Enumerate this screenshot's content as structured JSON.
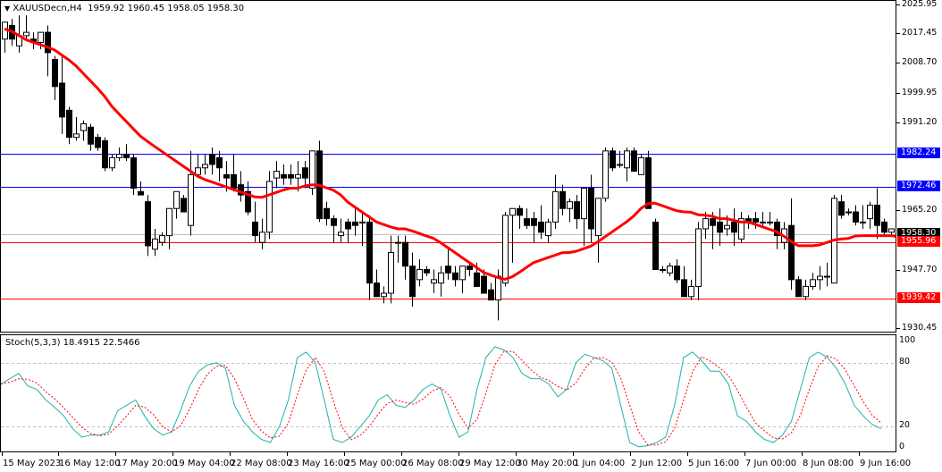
{
  "header": {
    "symbol": "XAUUSDecn,H4",
    "ohlc": "1959.92 1960.45 1958.05 1958.30",
    "title_full": "▼ XAUUSDecn,H4  1959.92 1960.45 1958.05 1958.30"
  },
  "oscillator": {
    "title": "Stoch(5,3,3) 18.4915 22.5466",
    "name": "Stoch(5,3,3)",
    "main_value": "18.4915",
    "signal_value": "22.5466",
    "levels": [
      "100",
      "80",
      "20",
      "0"
    ]
  },
  "price_axis": {
    "ticks": [
      "2025.95",
      "2017.45",
      "2008.70",
      "1999.95",
      "1991.20",
      "1965.20",
      "1947.70",
      "1930.45"
    ],
    "tags": [
      {
        "label": "1982.24",
        "color": "#0000ff",
        "type": "resistance"
      },
      {
        "label": "1972.46",
        "color": "#0000ff",
        "type": "resistance"
      },
      {
        "label": "1958.30",
        "color": "#000000",
        "type": "current-price"
      },
      {
        "label": "1955.96",
        "color": "#ff0000",
        "type": "support"
      },
      {
        "label": "1939.42",
        "color": "#ff0000",
        "type": "support"
      }
    ]
  },
  "time_axis": {
    "labels": [
      "15 May 2023",
      "16 May 12:00",
      "17 May 20:00",
      "19 May 04:00",
      "22 May 08:00",
      "23 May 16:00",
      "25 May 00:00",
      "26 May 08:00",
      "29 May 12:00",
      "30 May 20:00",
      "1 Jun 04:00",
      "2 Jun 12:00",
      "5 Jun 16:00",
      "7 Jun 00:00",
      "8 Jun 08:00",
      "9 Jun 16:00"
    ]
  },
  "colors": {
    "ma_line": "#ff0000",
    "resistance_line": "#0000ff",
    "support_line": "#ff0000",
    "current_price_line": "#c0c0c0",
    "stoch_main": "#20b2aa",
    "stoch_signal": "#ff0000",
    "bull_candle": "#ffffff",
    "bear_candle": "#000000"
  },
  "chart_data": [
    {
      "type": "candlestick",
      "title": "XAUUSDecn,H4",
      "xlabel": "",
      "ylabel": "Price",
      "ylim": [
        1930.45,
        2025.95
      ],
      "grid": false,
      "x_range": [
        "15 May 2023",
        "9 Jun 16:00"
      ],
      "last_ohlc": {
        "open": 1959.92,
        "high": 1960.45,
        "low": 1958.05,
        "close": 1958.3
      },
      "horizontal_lines": [
        {
          "value": 1982.24,
          "color": "#0000ff"
        },
        {
          "value": 1972.46,
          "color": "#0000ff"
        },
        {
          "value": 1958.3,
          "color": "#c0c0c0",
          "label": "current price"
        },
        {
          "value": 1955.96,
          "color": "#ff0000"
        },
        {
          "value": 1939.42,
          "color": "#ff0000"
        }
      ],
      "ohlc": [
        [
          2016,
          2019,
          2012,
          2021
        ],
        [
          2020,
          2022,
          2014,
          2016
        ],
        [
          2014,
          2023,
          2012,
          2017
        ],
        [
          2017,
          2023,
          2016,
          2018
        ],
        [
          2016,
          2018,
          2013,
          2015
        ],
        [
          2015,
          2016,
          2013,
          2018
        ],
        [
          2018,
          2020,
          2005,
          2012
        ],
        [
          2010,
          2011,
          1998,
          2002
        ],
        [
          2003,
          2011,
          1988,
          1993
        ],
        [
          1995,
          1996,
          1985,
          1987
        ],
        [
          1987,
          1993,
          1986,
          1988
        ],
        [
          1989,
          1992,
          1986,
          1991
        ],
        [
          1990,
          1991,
          1983,
          1985
        ],
        [
          1987,
          1988,
          1983,
          1984
        ],
        [
          1986,
          1987,
          1977,
          1978
        ],
        [
          1978,
          1982,
          1977,
          1981
        ],
        [
          1981,
          1984,
          1980,
          1982
        ],
        [
          1982,
          1985,
          1980,
          1981
        ],
        [
          1981,
          1982,
          1970,
          1972
        ],
        [
          1971,
          1974,
          1970,
          1970
        ],
        [
          1968,
          1970,
          1952,
          1955
        ],
        [
          1954,
          1960,
          1952,
          1957
        ],
        [
          1956,
          1959,
          1955,
          1958
        ],
        [
          1958,
          1966,
          1954,
          1966
        ],
        [
          1966,
          1971,
          1963,
          1971
        ],
        [
          1969,
          1970,
          1966,
          1965
        ],
        [
          1961,
          1983,
          1958,
          1976
        ],
        [
          1976,
          1982,
          1975,
          1978
        ],
        [
          1978,
          1982,
          1976,
          1979
        ],
        [
          1982,
          1984,
          1976,
          1979
        ],
        [
          1981,
          1983,
          1974,
          1978
        ],
        [
          1976,
          1980,
          1971,
          1975
        ],
        [
          1976,
          1982,
          1971,
          1972
        ],
        [
          1973,
          1977,
          1968,
          1970
        ],
        [
          1971,
          1974,
          1964,
          1965
        ],
        [
          1962,
          1968,
          1956,
          1958
        ],
        [
          1956,
          1963,
          1954,
          1959
        ],
        [
          1959,
          1977,
          1957,
          1974
        ],
        [
          1975,
          1980,
          1972,
          1977
        ],
        [
          1976,
          1979,
          1973,
          1975
        ],
        [
          1976,
          1979,
          1973,
          1975
        ],
        [
          1975,
          1980,
          1971,
          1976
        ],
        [
          1978,
          1980,
          1972,
          1975
        ],
        [
          1972,
          1983,
          1970,
          1983
        ],
        [
          1983,
          1986,
          1962,
          1963
        ],
        [
          1966,
          1968,
          1961,
          1963
        ],
        [
          1963,
          1964,
          1956,
          1961
        ],
        [
          1958,
          1963,
          1956,
          1959
        ],
        [
          1962,
          1963,
          1956,
          1960
        ],
        [
          1962,
          1966,
          1958,
          1961
        ],
        [
          1962,
          1965,
          1955,
          1962
        ],
        [
          1962,
          1964,
          1939,
          1944
        ],
        [
          1944,
          1948,
          1940,
          1940
        ],
        [
          1940,
          1943,
          1938,
          1941
        ],
        [
          1941,
          1958,
          1938,
          1953
        ],
        [
          1956,
          1958,
          1950,
          1956
        ],
        [
          1956,
          1958,
          1945,
          1949
        ],
        [
          1949,
          1953,
          1937,
          1940
        ],
        [
          1945,
          1951,
          1943,
          1948
        ],
        [
          1948,
          1949,
          1946,
          1947
        ],
        [
          1944,
          1948,
          1941,
          1945
        ],
        [
          1944,
          1949,
          1940,
          1947
        ],
        [
          1949,
          1954,
          1945,
          1947
        ],
        [
          1947,
          1949,
          1943,
          1945
        ],
        [
          1945,
          1949,
          1941,
          1949
        ],
        [
          1949,
          1950,
          1946,
          1948
        ],
        [
          1947,
          1950,
          1945,
          1943
        ],
        [
          1946,
          1948,
          1942,
          1941
        ],
        [
          1942,
          1944,
          1940,
          1939
        ],
        [
          1939,
          1948,
          1933,
          1946
        ],
        [
          1944,
          1965,
          1943,
          1964
        ],
        [
          1964,
          1966,
          1950,
          1966
        ],
        [
          1966,
          1967,
          1960,
          1964
        ],
        [
          1963,
          1966,
          1960,
          1961
        ],
        [
          1963,
          1965,
          1956,
          1961
        ],
        [
          1962,
          1967,
          1957,
          1959
        ],
        [
          1958,
          1963,
          1956,
          1962
        ],
        [
          1962,
          1976,
          1960,
          1971
        ],
        [
          1971,
          1973,
          1964,
          1966
        ],
        [
          1966,
          1969,
          1962,
          1968
        ],
        [
          1968,
          1970,
          1960,
          1963
        ],
        [
          1963,
          1972,
          1955,
          1972
        ],
        [
          1972,
          1976,
          1956,
          1960
        ],
        [
          1958,
          1969,
          1950,
          1969
        ],
        [
          1969,
          1984,
          1968,
          1983
        ],
        [
          1983,
          1984,
          1977,
          1978
        ],
        [
          1979,
          1983,
          1978,
          1979
        ],
        [
          1978,
          1984,
          1974,
          1983
        ],
        [
          1983,
          1984,
          1977,
          1977
        ],
        [
          1976,
          1982,
          1976,
          1981
        ],
        [
          1981,
          1983,
          1966,
          1966
        ],
        [
          1962,
          1963,
          1948,
          1948
        ],
        [
          1948,
          1949,
          1947,
          1948
        ],
        [
          1947,
          1950,
          1946,
          1949
        ],
        [
          1949,
          1951,
          1944,
          1945
        ],
        [
          1945,
          1949,
          1940,
          1940
        ],
        [
          1940,
          1945,
          1939,
          1943
        ],
        [
          1943,
          1962,
          1939,
          1960
        ],
        [
          1960,
          1965,
          1957,
          1963
        ],
        [
          1963,
          1965,
          1954,
          1961
        ],
        [
          1962,
          1966,
          1955,
          1959
        ],
        [
          1960,
          1964,
          1958,
          1961
        ],
        [
          1962,
          1966,
          1955,
          1959
        ],
        [
          1957,
          1965,
          1956,
          1963
        ],
        [
          1963,
          1964,
          1960,
          1962
        ],
        [
          1963,
          1965,
          1960,
          1962
        ],
        [
          1962,
          1965,
          1961,
          1962
        ],
        [
          1962,
          1965,
          1961,
          1962
        ],
        [
          1962,
          1963,
          1954,
          1958
        ],
        [
          1956,
          1962,
          1954,
          1960
        ],
        [
          1961,
          1969,
          1942,
          1945
        ],
        [
          1945,
          1946,
          1940,
          1940
        ],
        [
          1940,
          1945,
          1939,
          1943
        ],
        [
          1943,
          1947,
          1942,
          1945
        ],
        [
          1945,
          1949,
          1942,
          1946
        ],
        [
          1946,
          1950,
          1943,
          1946
        ],
        [
          1944,
          1970,
          1944,
          1969
        ],
        [
          1968,
          1970,
          1963,
          1964
        ],
        [
          1965,
          1966,
          1964,
          1965
        ],
        [
          1965,
          1967,
          1961,
          1962
        ],
        [
          1962,
          1967,
          1960,
          1962
        ],
        [
          1963,
          1968,
          1960,
          1967
        ],
        [
          1967,
          1972,
          1957,
          1961
        ],
        [
          1962,
          1963,
          1958,
          1959
        ],
        [
          1959,
          1960,
          1958,
          1960
        ],
        [
          1959,
          1960,
          1956,
          1958
        ],
        [
          1959.92,
          1960.45,
          1958.05,
          1958.3
        ]
      ],
      "series": [
        {
          "name": "Moving Average",
          "color": "#ff0000",
          "values": [
            2019,
            2018,
            2016,
            2015,
            2014,
            2013,
            2011,
            2009,
            2006,
            2003,
            2000,
            1996,
            1993,
            1990,
            1987,
            1985,
            1983,
            1981,
            1979,
            1977,
            1975,
            1974,
            1973,
            1972,
            1971,
            1970,
            1969,
            1970,
            1971,
            1972,
            1972,
            1973,
            1973,
            1972,
            1971,
            1968,
            1966,
            1964,
            1962,
            1961,
            1960,
            1960,
            1959,
            1958,
            1957,
            1955,
            1953,
            1951,
            1949,
            1947,
            1946,
            1945,
            1946,
            1948,
            1950,
            1951,
            1952,
            1953,
            1953,
            1954,
            1955,
            1957,
            1959,
            1961,
            1963,
            1966,
            1968,
            1967,
            1966,
            1965,
            1965,
            1964,
            1964,
            1963,
            1963,
            1962,
            1962,
            1961,
            1960,
            1959,
            1957,
            1955,
            1955,
            1955,
            1956,
            1957,
            1957,
            1958,
            1958,
            1958,
            1958,
            1958,
            1957
          ]
        }
      ]
    },
    {
      "type": "line",
      "title": "Stoch(5,3,3) 18.4915 22.5466",
      "ylim": [
        0,
        100
      ],
      "levels": [
        20,
        80
      ],
      "series": [
        {
          "name": "%K (main)",
          "color": "#20b2aa",
          "last": 18.4915
        },
        {
          "name": "%D (signal)",
          "color": "#ff0000",
          "style": "dashed",
          "last": 22.5466
        }
      ]
    }
  ]
}
